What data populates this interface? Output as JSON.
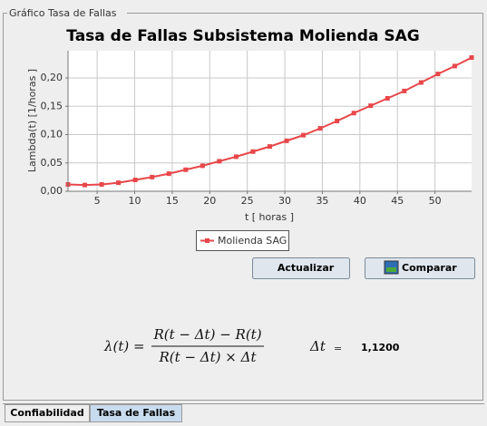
{
  "panel_title": "Gráfico Tasa de Fallas",
  "chart_data": {
    "type": "line",
    "title": "Tasa de Fallas Subsistema Molienda SAG",
    "x_label": "t [ horas ]",
    "y_label": "Lambda(t) [1/horas ]",
    "x": [
      1.12,
      3.36,
      5.6,
      7.84,
      10.08,
      12.32,
      14.56,
      16.8,
      19.04,
      21.28,
      23.52,
      25.76,
      28,
      30.24,
      32.48,
      34.72,
      36.96,
      39.2,
      41.44,
      43.68,
      45.92,
      48.16,
      50.4,
      52.64,
      54.88
    ],
    "series": [
      {
        "name": "Molienda SAG",
        "color": "#e8474a",
        "values": [
          0.012,
          0.011,
          0.012,
          0.015,
          0.02,
          0.025,
          0.031,
          0.038,
          0.045,
          0.053,
          0.061,
          0.07,
          0.079,
          0.089,
          0.099,
          0.111,
          0.124,
          0.138,
          0.151,
          0.164,
          0.177,
          0.192,
          0.207,
          0.221,
          0.236
        ]
      }
    ],
    "xlim": [
      1.12,
      54.88
    ],
    "ylim": [
      0,
      0.248
    ],
    "xticks": [
      5,
      10,
      15,
      20,
      25,
      30,
      35,
      40,
      45,
      50
    ],
    "yticks": [
      {
        "value": 0,
        "label": "0,00"
      },
      {
        "value": 0.05,
        "label": "0,05"
      },
      {
        "value": 0.1,
        "label": "0,10"
      },
      {
        "value": 0.15,
        "label": "0,15"
      },
      {
        "value": 0.2,
        "label": "0,20"
      }
    ],
    "grid": true
  },
  "buttons": [
    "Actualizar",
    "Comparar"
  ],
  "formula": {
    "lhs": "λ(t) =",
    "numerator": "R(t − Δt) − R(t)",
    "denominator": "R(t − Δt) × Δt",
    "delta_label": "Δt",
    "equals": "=",
    "delta_value": "1,1200"
  },
  "tabs": [
    "Confiabilidad",
    "Tasa de Fallas"
  ]
}
